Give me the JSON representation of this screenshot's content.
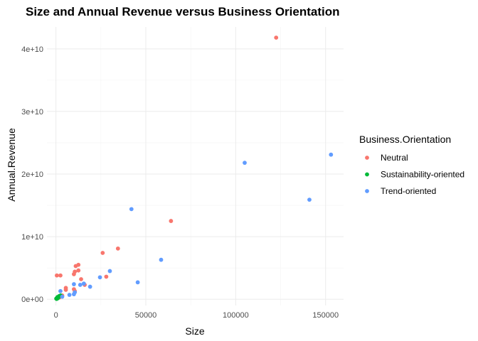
{
  "chart_data": {
    "type": "scatter",
    "title": "Size and Annual Revenue versus Business Orientation",
    "xlabel": "Size",
    "ylabel": "Annual.Revenue",
    "xlim": [
      -5000,
      160000
    ],
    "ylim": [
      -1000000000,
      43500000000
    ],
    "x_ticks": [
      0,
      50000,
      100000,
      150000
    ],
    "x_tick_labels": [
      "0",
      "50000",
      "100000",
      "150000"
    ],
    "y_ticks": [
      0,
      10000000000,
      20000000000,
      30000000000,
      40000000000
    ],
    "y_tick_labels": [
      "0e+00",
      "1e+10",
      "2e+10",
      "3e+10",
      "4e+10"
    ],
    "grid": true,
    "legend": {
      "title": "Business.Orientation",
      "position": "right"
    },
    "series": [
      {
        "name": "Neutral",
        "color": "#F8766D",
        "points": [
          [
            122500,
            41800000000
          ],
          [
            64000,
            12500000000
          ],
          [
            34500,
            8100000000
          ],
          [
            26000,
            7400000000
          ],
          [
            28000,
            3600000000
          ],
          [
            12500,
            5500000000
          ],
          [
            11000,
            5300000000
          ],
          [
            12500,
            4600000000
          ],
          [
            10500,
            4400000000
          ],
          [
            10000,
            4000000000
          ],
          [
            14000,
            3200000000
          ],
          [
            500,
            3800000000
          ],
          [
            2500,
            3800000000
          ],
          [
            5500,
            1800000000
          ],
          [
            5500,
            1500000000
          ],
          [
            10000,
            1600000000
          ],
          [
            10500,
            1300000000
          ],
          [
            16000,
            2300000000
          ],
          [
            3500,
            600000000
          ],
          [
            2000,
            300000000
          ]
        ]
      },
      {
        "name": "Sustainability-oriented",
        "color": "#00BA38",
        "points": [
          [
            200,
            100000000
          ],
          [
            600,
            200000000
          ],
          [
            900,
            350000000
          ],
          [
            1300,
            250000000
          ],
          [
            1800,
            500000000
          ],
          [
            2600,
            600000000
          ],
          [
            400,
            50000000
          ],
          [
            1000,
            150000000
          ]
        ]
      },
      {
        "name": "Trend-oriented",
        "color": "#619CFF",
        "points": [
          [
            153000,
            23100000000
          ],
          [
            105000,
            21800000000
          ],
          [
            141000,
            15900000000
          ],
          [
            42000,
            14400000000
          ],
          [
            58500,
            6300000000
          ],
          [
            30000,
            4500000000
          ],
          [
            24500,
            3500000000
          ],
          [
            45500,
            2700000000
          ],
          [
            10000,
            2400000000
          ],
          [
            13500,
            2300000000
          ],
          [
            15500,
            2500000000
          ],
          [
            19000,
            2000000000
          ],
          [
            10500,
            1100000000
          ],
          [
            10000,
            800000000
          ],
          [
            7500,
            700000000
          ],
          [
            2500,
            1300000000
          ],
          [
            3500,
            400000000
          ]
        ]
      }
    ]
  }
}
